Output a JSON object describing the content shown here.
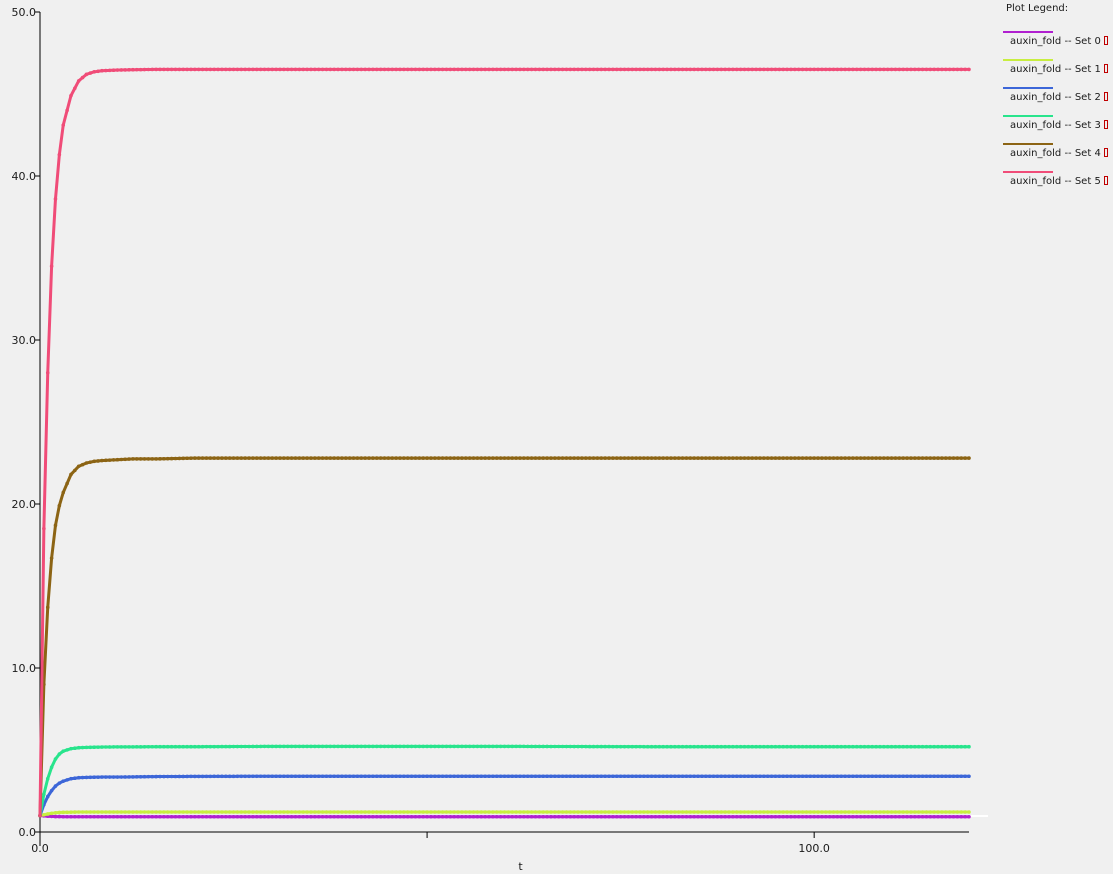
{
  "chart_data": {
    "type": "line",
    "title": "",
    "xlabel": "t",
    "ylabel": "",
    "xlim": [
      0,
      120
    ],
    "ylim": [
      0,
      50
    ],
    "x_ticks": [
      {
        "value": 0,
        "label": "0.0"
      },
      {
        "value": 50,
        "label": ""
      },
      {
        "value": 100,
        "label": "100.0"
      }
    ],
    "y_ticks": [
      {
        "value": 0,
        "label": "0.0"
      },
      {
        "value": 10,
        "label": "10.0"
      },
      {
        "value": 20,
        "label": "20.0"
      },
      {
        "value": 30,
        "label": "30.0"
      },
      {
        "value": 40,
        "label": "40.0"
      },
      {
        "value": 50,
        "label": "50.0"
      }
    ],
    "grid": false,
    "legend_position": "top-right",
    "legend_title": "Plot Legend:",
    "x": [
      0,
      0.5,
      1,
      1.5,
      2,
      2.5,
      3,
      4,
      5,
      6,
      7,
      8,
      10,
      12,
      15,
      20,
      30,
      40,
      50,
      60,
      70,
      80,
      90,
      100,
      110,
      120
    ],
    "series": [
      {
        "name": "auxin_fold -- Set 0",
        "color": "#b020d0",
        "values": [
          1.0,
          0.98,
          0.96,
          0.95,
          0.94,
          0.94,
          0.93,
          0.93,
          0.93,
          0.93,
          0.93,
          0.93,
          0.93,
          0.93,
          0.93,
          0.93,
          0.93,
          0.93,
          0.93,
          0.93,
          0.93,
          0.93,
          0.93,
          0.93,
          0.93,
          0.93
        ]
      },
      {
        "name": "auxin_fold -- Set 1",
        "color": "#c8ee40",
        "values": [
          1.0,
          1.05,
          1.1,
          1.14,
          1.17,
          1.19,
          1.2,
          1.21,
          1.22,
          1.22,
          1.22,
          1.22,
          1.22,
          1.22,
          1.22,
          1.22,
          1.22,
          1.22,
          1.22,
          1.22,
          1.22,
          1.22,
          1.22,
          1.22,
          1.22,
          1.22
        ]
      },
      {
        "name": "auxin_fold -- Set 2",
        "color": "#3c66d8",
        "values": [
          1.0,
          1.66,
          2.16,
          2.52,
          2.8,
          2.98,
          3.1,
          3.25,
          3.31,
          3.33,
          3.34,
          3.35,
          3.35,
          3.36,
          3.38,
          3.39,
          3.4,
          3.4,
          3.4,
          3.4,
          3.4,
          3.4,
          3.4,
          3.4,
          3.4,
          3.4
        ]
      },
      {
        "name": "auxin_fold -- Set 3",
        "color": "#28e48c",
        "values": [
          1.0,
          2.3,
          3.25,
          3.95,
          4.45,
          4.75,
          4.93,
          5.08,
          5.14,
          5.16,
          5.17,
          5.18,
          5.19,
          5.19,
          5.2,
          5.2,
          5.22,
          5.22,
          5.22,
          5.22,
          5.21,
          5.2,
          5.2,
          5.2,
          5.2,
          5.2
        ]
      },
      {
        "name": "auxin_fold -- Set 4",
        "color": "#8c6414",
        "values": [
          1.0,
          9.0,
          13.7,
          16.7,
          18.7,
          19.9,
          20.7,
          21.8,
          22.3,
          22.5,
          22.6,
          22.65,
          22.7,
          22.75,
          22.75,
          22.8,
          22.8,
          22.8,
          22.8,
          22.8,
          22.8,
          22.8,
          22.8,
          22.8,
          22.8,
          22.8
        ]
      },
      {
        "name": "auxin_fold -- Set 5",
        "color": "#f04c78",
        "values": [
          1.0,
          18.5,
          28.0,
          34.5,
          38.6,
          41.3,
          43.1,
          44.9,
          45.8,
          46.2,
          46.35,
          46.42,
          46.46,
          46.48,
          46.5,
          46.5,
          46.5,
          46.5,
          46.5,
          46.5,
          46.5,
          46.5,
          46.5,
          46.5,
          46.5,
          46.5
        ]
      }
    ]
  }
}
